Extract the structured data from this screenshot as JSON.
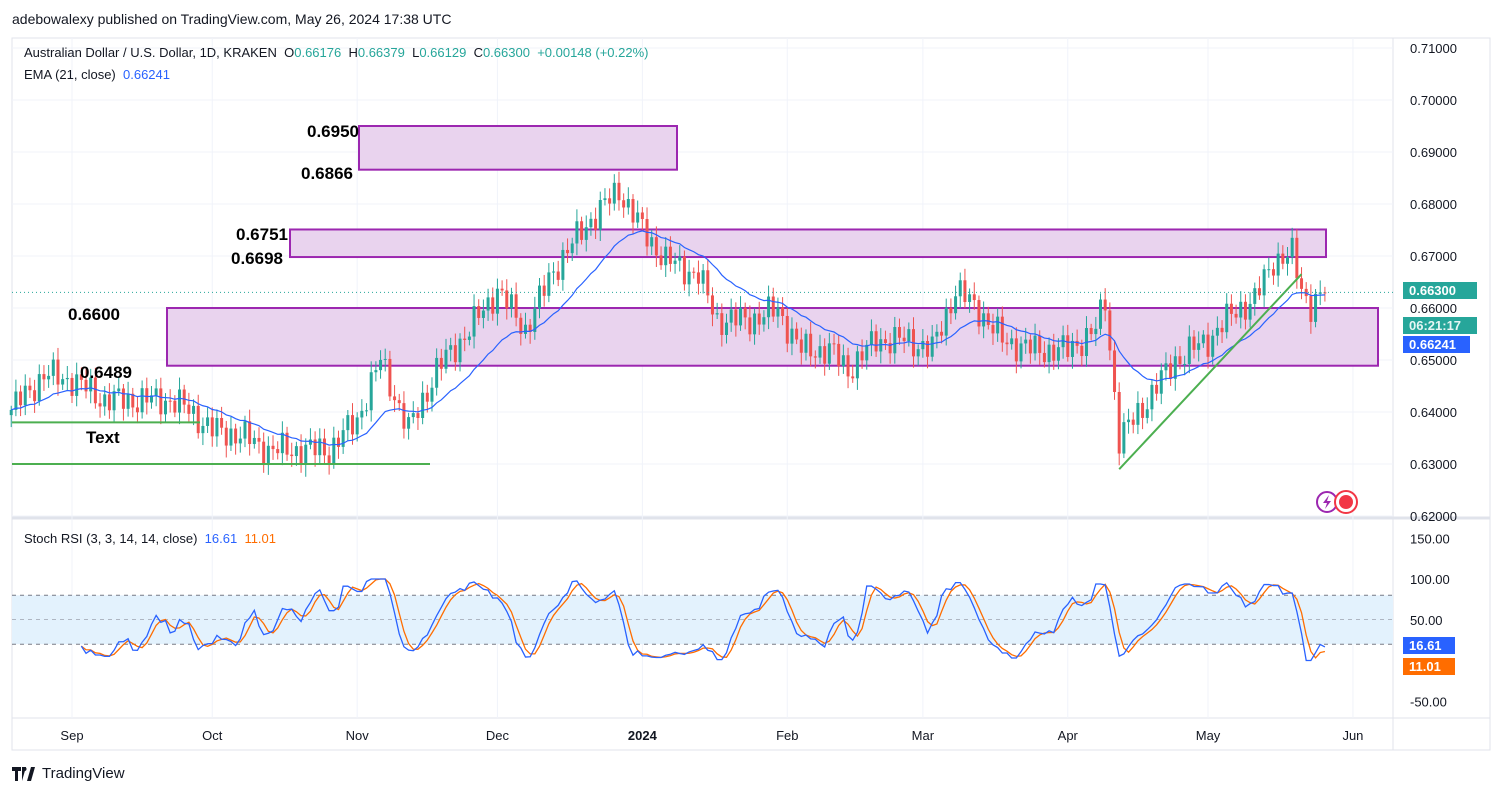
{
  "header": {
    "published": "adebowalexy published on TradingView.com, May 26, 2024 17:38 UTC"
  },
  "legend": {
    "symbol": "Australian Dollar / U.S. Dollar, 1D, KRAKEN",
    "o_label": "O",
    "open": "0.66176",
    "h_label": "H",
    "high": "0.66379",
    "l_label": "L",
    "low": "0.66129",
    "c_label": "C",
    "close": "0.66300",
    "change": "+0.00148 (+0.22%)",
    "ema_label": "EMA (21, close)",
    "ema_value": "0.66241",
    "stoch_label": "Stoch RSI (3, 3, 14, 14, close)",
    "stoch_k": "16.61",
    "stoch_d": "11.01"
  },
  "price_tags": {
    "last": "0.66300",
    "countdown": "06:21:17",
    "ema": "0.66241",
    "stoch_k": "16.61",
    "stoch_d": "11.01"
  },
  "annotations": {
    "levels": [
      "0.6950",
      "0.6866",
      "0.6751",
      "0.6698",
      "0.6600",
      "0.6489"
    ],
    "text_label": "Text"
  },
  "footer": {
    "brand": "TradingView"
  },
  "colors": {
    "up": "#26a69a",
    "down": "#ef5350",
    "ema": "#2962ff",
    "stoch_k": "#2962ff",
    "stoch_d": "#ff6d00",
    "zone_fill": "#e9d3ee",
    "zone_border": "#9c27b0",
    "trendline": "#4caf50"
  },
  "chart_data": [
    {
      "type": "candlestick",
      "title": "Australian Dollar / U.S. Dollar, 1D, KRAKEN",
      "y_ticks": [
        "0.71000",
        "0.70000",
        "0.69000",
        "0.68000",
        "0.67000",
        "0.66000",
        "0.65000",
        "0.64000",
        "0.63000",
        "0.62000"
      ],
      "ylim": [
        0.62,
        0.71
      ],
      "x_ticks": [
        "Sep",
        "Oct",
        "Nov",
        "Dec",
        "2024",
        "Feb",
        "Mar",
        "Apr",
        "May",
        "Jun"
      ],
      "approx_closes": [
        [
          "2023-08-19",
          0.6404
        ],
        [
          "2023-08-26",
          0.6471
        ],
        [
          "2023-09-01",
          0.6462
        ],
        [
          "2023-09-08",
          0.6423
        ],
        [
          "2023-09-15",
          0.6423
        ],
        [
          "2023-09-22",
          0.6423
        ],
        [
          "2023-09-26",
          0.6404
        ],
        [
          "2023-10-01",
          0.6365
        ],
        [
          "2023-10-07",
          0.6356
        ],
        [
          "2023-10-13",
          0.6327
        ],
        [
          "2023-10-20",
          0.6327
        ],
        [
          "2023-10-26",
          0.6327
        ],
        [
          "2023-11-01",
          0.6385
        ],
        [
          "2023-11-06",
          0.65
        ],
        [
          "2023-11-12",
          0.6365
        ],
        [
          "2023-11-18",
          0.6481
        ],
        [
          "2023-11-25",
          0.6558
        ],
        [
          "2023-12-01",
          0.6635
        ],
        [
          "2023-12-07",
          0.6558
        ],
        [
          "2023-12-13",
          0.6673
        ],
        [
          "2023-12-20",
          0.676
        ],
        [
          "2023-12-27",
          0.6827
        ],
        [
          "2024-01-01",
          0.675
        ],
        [
          "2024-01-06",
          0.6692
        ],
        [
          "2024-01-13",
          0.6663
        ],
        [
          "2024-01-17",
          0.6577
        ],
        [
          "2024-01-24",
          0.6577
        ],
        [
          "2024-01-30",
          0.6596
        ],
        [
          "2024-02-04",
          0.6519
        ],
        [
          "2024-02-10",
          0.6519
        ],
        [
          "2024-02-14",
          0.6481
        ],
        [
          "2024-02-20",
          0.6538
        ],
        [
          "2024-02-27",
          0.6538
        ],
        [
          "2024-03-03",
          0.6519
        ],
        [
          "2024-03-08",
          0.6635
        ],
        [
          "2024-03-13",
          0.6596
        ],
        [
          "2024-03-18",
          0.6538
        ],
        [
          "2024-03-25",
          0.6519
        ],
        [
          "2024-04-01",
          0.6519
        ],
        [
          "2024-04-07",
          0.6558
        ],
        [
          "2024-04-09",
          0.6615
        ],
        [
          "2024-04-12",
          0.6346
        ],
        [
          "2024-04-18",
          0.6423
        ],
        [
          "2024-04-24",
          0.65
        ],
        [
          "2024-05-01",
          0.6538
        ],
        [
          "2024-05-07",
          0.6596
        ],
        [
          "2024-05-11",
          0.6615
        ],
        [
          "2024-05-15",
          0.6692
        ],
        [
          "2024-05-19",
          0.6702
        ],
        [
          "2024-05-21",
          0.6635
        ],
        [
          "2024-05-23",
          0.6606
        ],
        [
          "2024-05-26",
          0.663
        ]
      ],
      "zones": [
        [
          0.6866,
          0.695
        ],
        [
          0.6698,
          0.6751
        ],
        [
          0.6489,
          0.66
        ]
      ],
      "horizontal_lines": [
        0.638,
        0.63
      ],
      "trendline": [
        [
          "2024-04-12",
          0.629
        ],
        [
          "2024-05-21",
          0.6665
        ]
      ]
    },
    {
      "type": "line",
      "title": "Stoch RSI (3, 3, 14, 14, close)",
      "y_ticks": [
        "150.00",
        "100.00",
        "50.00",
        "-50.00"
      ],
      "bands": [
        20,
        80
      ],
      "series": [
        {
          "name": "K",
          "last": 16.61
        },
        {
          "name": "D",
          "last": 11.01
        }
      ]
    }
  ]
}
